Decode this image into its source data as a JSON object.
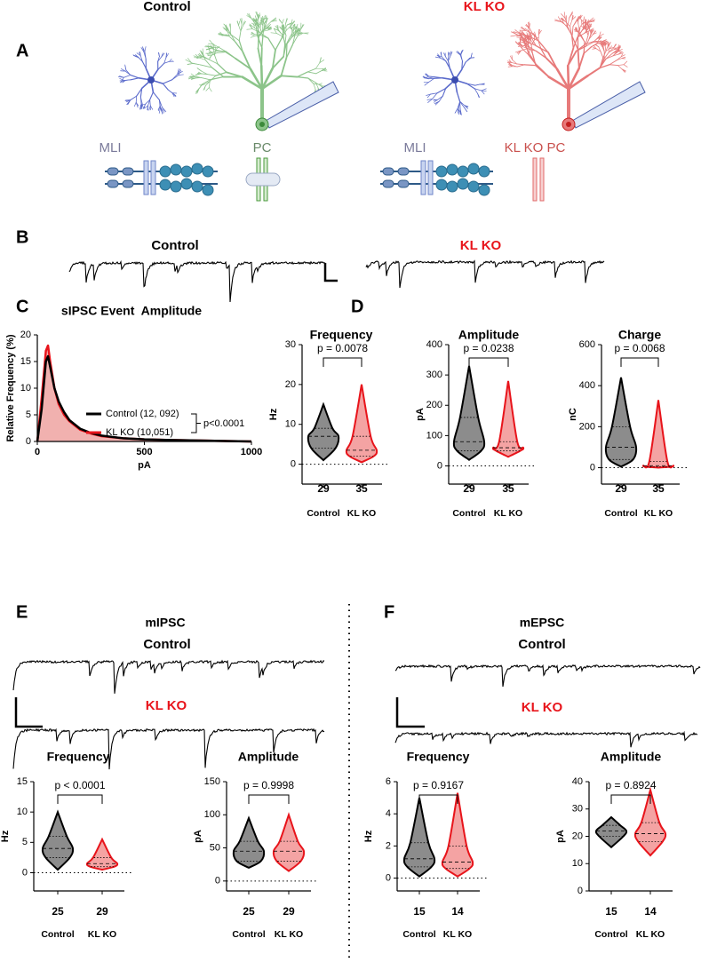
{
  "figure": {
    "panel_letters": [
      "A",
      "B",
      "C",
      "D",
      "E",
      "F"
    ],
    "a_titles": [
      "Control",
      "KL KO"
    ],
    "a_cells": [
      "MLI",
      "PC",
      "MLI",
      "KL KO PC"
    ],
    "b_titles": [
      "Control",
      "KL KO"
    ],
    "e_title": "mIPSC",
    "e_traces": [
      "Control",
      "KL KO"
    ],
    "f_title": "mEPSC",
    "f_traces": [
      "Control",
      "KL KO"
    ]
  },
  "chart_data": [
    {
      "type": "line",
      "title": "sIPSC Event  Amplitude",
      "xlabel": "pA",
      "ylabel": "Relative Frequency (%)",
      "x": [
        0,
        20,
        40,
        50,
        60,
        80,
        100,
        125,
        150,
        200,
        250,
        300,
        400,
        500,
        600,
        800,
        1000
      ],
      "series": [
        {
          "name": "Control (12, 092)",
          "color": "#000000",
          "values": [
            0,
            6,
            15,
            16,
            14,
            10,
            7.5,
            5.5,
            4,
            2.4,
            1.6,
            1.1,
            0.6,
            0.4,
            0.3,
            0.15,
            0
          ]
        },
        {
          "name": "KL KO (10,051)",
          "color": "#e8141b",
          "area": true,
          "fill": "#eea3a1",
          "values": [
            0,
            8,
            17,
            18,
            15,
            10,
            7,
            5,
            3.8,
            2.2,
            1.5,
            1,
            0.6,
            0.4,
            0.3,
            0.15,
            0
          ]
        }
      ],
      "xlim": [
        0,
        1000
      ],
      "xticks": [
        0,
        500,
        1000
      ],
      "ylim": [
        0,
        20
      ],
      "yticks": [
        0,
        5,
        10,
        15,
        20
      ],
      "legend": "right",
      "annotation": "p<0.0001"
    },
    {
      "type": "violin",
      "title": "Frequency",
      "ylabel": "Hz",
      "categories": [
        "Control",
        "KL KO"
      ],
      "n": [
        29,
        35
      ],
      "colors": [
        "#8c8c8c",
        "#f4a3a3"
      ],
      "edge_colors": [
        "#000000",
        "#e8141b"
      ],
      "min": [
        1,
        0.5
      ],
      "q1": [
        4,
        2
      ],
      "median": [
        7,
        3.5
      ],
      "q3": [
        9,
        7
      ],
      "max": [
        15,
        20
      ],
      "annotation": "p = 0.0078",
      "ylim": [
        -5,
        30
      ],
      "yticks": [
        0,
        10,
        20,
        30
      ],
      "zero_line": true
    },
    {
      "type": "violin",
      "title": "Amplitude",
      "ylabel": "pA",
      "categories": [
        "Control",
        "KL KO"
      ],
      "n": [
        29,
        35
      ],
      "colors": [
        "#8c8c8c",
        "#f4a3a3"
      ],
      "edge_colors": [
        "#000000",
        "#e8141b"
      ],
      "min": [
        20,
        30
      ],
      "q1": [
        50,
        50
      ],
      "median": [
        80,
        60
      ],
      "q3": [
        160,
        80
      ],
      "max": [
        330,
        280
      ],
      "annotation": "p = 0.0238",
      "ylim": [
        -60,
        400
      ],
      "yticks": [
        0,
        100,
        200,
        300,
        400
      ],
      "zero_line": true
    },
    {
      "type": "violin",
      "title": "Charge",
      "ylabel": "nC",
      "categories": [
        "Control",
        "KL KO"
      ],
      "n": [
        29,
        35
      ],
      "colors": [
        "#8c8c8c",
        "#f4a3a3"
      ],
      "edge_colors": [
        "#000000",
        "#e8141b"
      ],
      "min": [
        5,
        0
      ],
      "q1": [
        40,
        5
      ],
      "median": [
        100,
        10
      ],
      "q3": [
        200,
        30
      ],
      "max": [
        440,
        330
      ],
      "annotation": "p = 0.0068",
      "ylim": [
        -80,
        600
      ],
      "yticks": [
        0,
        200,
        400,
        600
      ],
      "zero_line": true
    },
    {
      "type": "violin",
      "title": "Frequency",
      "ylabel": "Hz",
      "categories": [
        "Control",
        "KL KO"
      ],
      "n": [
        25,
        29
      ],
      "colors": [
        "#8c8c8c",
        "#f4a3a3"
      ],
      "edge_colors": [
        "#000000",
        "#e8141b"
      ],
      "min": [
        0.5,
        0.5
      ],
      "q1": [
        2.5,
        1
      ],
      "median": [
        4,
        1.5
      ],
      "q3": [
        6,
        2.5
      ],
      "max": [
        10,
        5.5
      ],
      "annotation": "p < 0.0001",
      "ylim": [
        -3,
        15
      ],
      "yticks": [
        0,
        5,
        10,
        15
      ],
      "zero_line": true
    },
    {
      "type": "violin",
      "title": "Amplitude",
      "ylabel": "pA",
      "categories": [
        "Control",
        "KL KO"
      ],
      "n": [
        25,
        29
      ],
      "colors": [
        "#8c8c8c",
        "#f4a3a3"
      ],
      "edge_colors": [
        "#000000",
        "#e8141b"
      ],
      "min": [
        20,
        15
      ],
      "q1": [
        30,
        30
      ],
      "median": [
        45,
        45
      ],
      "q3": [
        60,
        60
      ],
      "max": [
        95,
        100
      ],
      "annotation": "p = 0.9998",
      "ylim": [
        -15,
        150
      ],
      "yticks": [
        0,
        50,
        100,
        150
      ],
      "zero_line": true
    },
    {
      "type": "violin",
      "title": "Frequency",
      "ylabel": "Hz",
      "categories": [
        "Control",
        "KL KO"
      ],
      "n": [
        15,
        14
      ],
      "colors": [
        "#8c8c8c",
        "#f4a3a3"
      ],
      "edge_colors": [
        "#000000",
        "#e8141b"
      ],
      "min": [
        0.1,
        0.1
      ],
      "q1": [
        0.7,
        0.6
      ],
      "median": [
        1.2,
        1
      ],
      "q3": [
        2.2,
        2
      ],
      "max": [
        5,
        5.3
      ],
      "annotation": "p = 0.9167",
      "ylim": [
        -0.8,
        6
      ],
      "yticks": [
        0,
        2,
        4,
        6
      ],
      "zero_line": true
    },
    {
      "type": "violin",
      "title": "Amplitude",
      "ylabel": "pA",
      "categories": [
        "Control",
        "KL KO"
      ],
      "n": [
        15,
        14
      ],
      "colors": [
        "#8c8c8c",
        "#f4a3a3"
      ],
      "edge_colors": [
        "#000000",
        "#e8141b"
      ],
      "min": [
        16,
        13
      ],
      "q1": [
        20,
        18
      ],
      "median": [
        22,
        21
      ],
      "q3": [
        24,
        25
      ],
      "max": [
        27,
        37
      ],
      "annotation": "p = 0.8924",
      "ylim": [
        0,
        40
      ],
      "yticks": [
        0,
        10,
        20,
        30,
        40
      ],
      "zero_line": false
    }
  ]
}
